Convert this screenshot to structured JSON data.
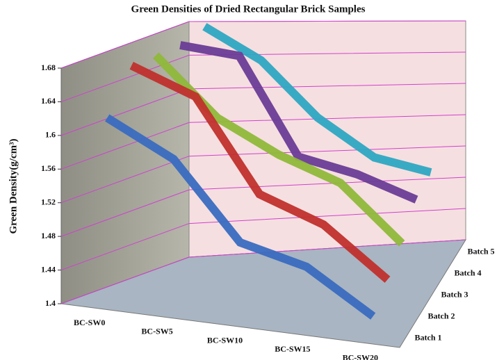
{
  "chart_data": {
    "type": "line3d",
    "title": "Green Densities of Dried Rectangular Brick Samples",
    "y_label": "Green Density(g/cm³)",
    "categories": [
      "BC-SW0",
      "BC-SW5",
      "BC-SW10",
      "BC-SW15",
      "BC-SW20"
    ],
    "series": [
      {
        "name": "Batch 1",
        "color": "#3a6cc0",
        "values": [
          1.62,
          1.58,
          1.49,
          1.47,
          1.42
        ]
      },
      {
        "name": "Batch 2",
        "color": "#c0302c",
        "values": [
          1.67,
          1.64,
          1.53,
          1.5,
          1.44
        ]
      },
      {
        "name": "Batch 3",
        "color": "#8fb83a",
        "values": [
          1.67,
          1.6,
          1.56,
          1.53,
          1.46
        ]
      },
      {
        "name": "Batch 4",
        "color": "#6a3c96",
        "values": [
          1.67,
          1.66,
          1.54,
          1.52,
          1.49
        ]
      },
      {
        "name": "Batch 5",
        "color": "#2ea6c2",
        "values": [
          1.68,
          1.64,
          1.57,
          1.52,
          1.5
        ]
      }
    ],
    "ylim": [
      1.4,
      1.68
    ],
    "yticks": [
      1.4,
      1.44,
      1.48,
      1.52,
      1.56,
      1.6,
      1.64,
      1.68
    ],
    "grid": true,
    "grid_color": "#d040d0"
  }
}
